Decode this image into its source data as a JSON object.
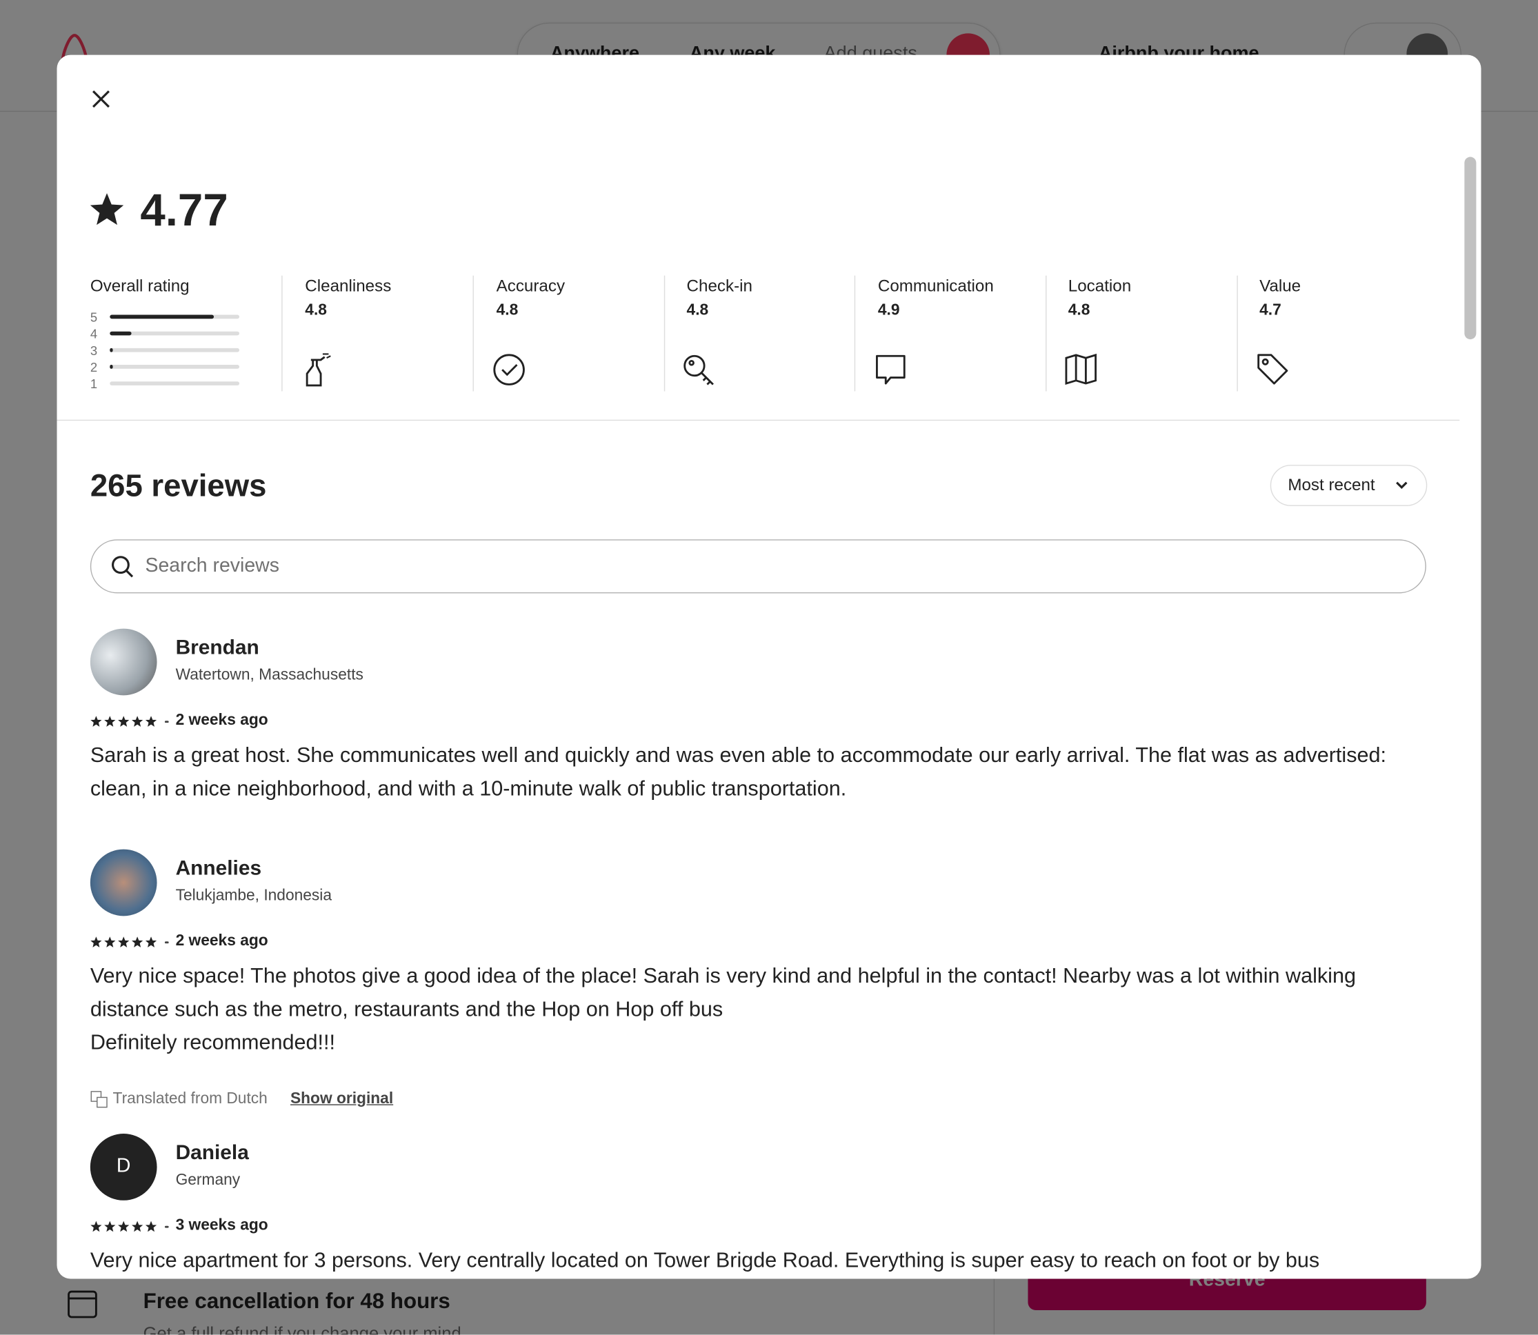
{
  "background": {
    "nav": {
      "location": "Anywhere",
      "dates": "Any week",
      "guests": "Add guests",
      "host_link": "Airbnb your home"
    },
    "cancellation": {
      "title": "Free cancellation for 48 hours",
      "subtitle": "Get a full refund if you change your mind"
    },
    "reserve_button": "Reserve"
  },
  "modal": {
    "overall_score": 4.77,
    "overall_label": "Overall rating",
    "distribution": {
      "stars": [
        5,
        4,
        3,
        2,
        1
      ],
      "percent": [
        80,
        17,
        2,
        1,
        0
      ]
    },
    "categories": [
      {
        "name": "Cleanliness",
        "score": 4.8
      },
      {
        "name": "Accuracy",
        "score": 4.8
      },
      {
        "name": "Check-in",
        "score": 4.8
      },
      {
        "name": "Communication",
        "score": 4.9
      },
      {
        "name": "Location",
        "score": 4.8
      },
      {
        "name": "Value",
        "score": 4.7
      }
    ],
    "review_count_label": "265 reviews",
    "sort_label": "Most recent",
    "search_placeholder": "Search reviews",
    "reviews": [
      {
        "name": "Brendan",
        "location": "Watertown, Massachusetts",
        "stars": 5,
        "time": "2 weeks ago",
        "text": "Sarah is a great host. She communicates well and quickly and was even able to accommodate our early arrival. The flat was as advertised: clean, in a nice neighborhood, and with a 10-minute walk of public transportation."
      },
      {
        "name": "Annelies",
        "location": "Telukjambe, Indonesia",
        "stars": 5,
        "time": "2 weeks ago",
        "text": "Very nice space! The photos give a good idea of the place! Sarah is very kind and helpful in the contact! Nearby was a lot within walking distance such as the metro, restaurants and the Hop on Hop off bus\nDefinitely recommended!!!",
        "translation_note": "Translated from Dutch",
        "show_original": "Show original"
      },
      {
        "name": "Daniela",
        "initial": "D",
        "location": "Germany",
        "stars": 5,
        "time": "3 weeks ago",
        "text": "Very nice apartment for 3 persons. Very centrally located on Tower Brigde Road. Everything is super easy to reach on foot or by bus"
      }
    ]
  }
}
